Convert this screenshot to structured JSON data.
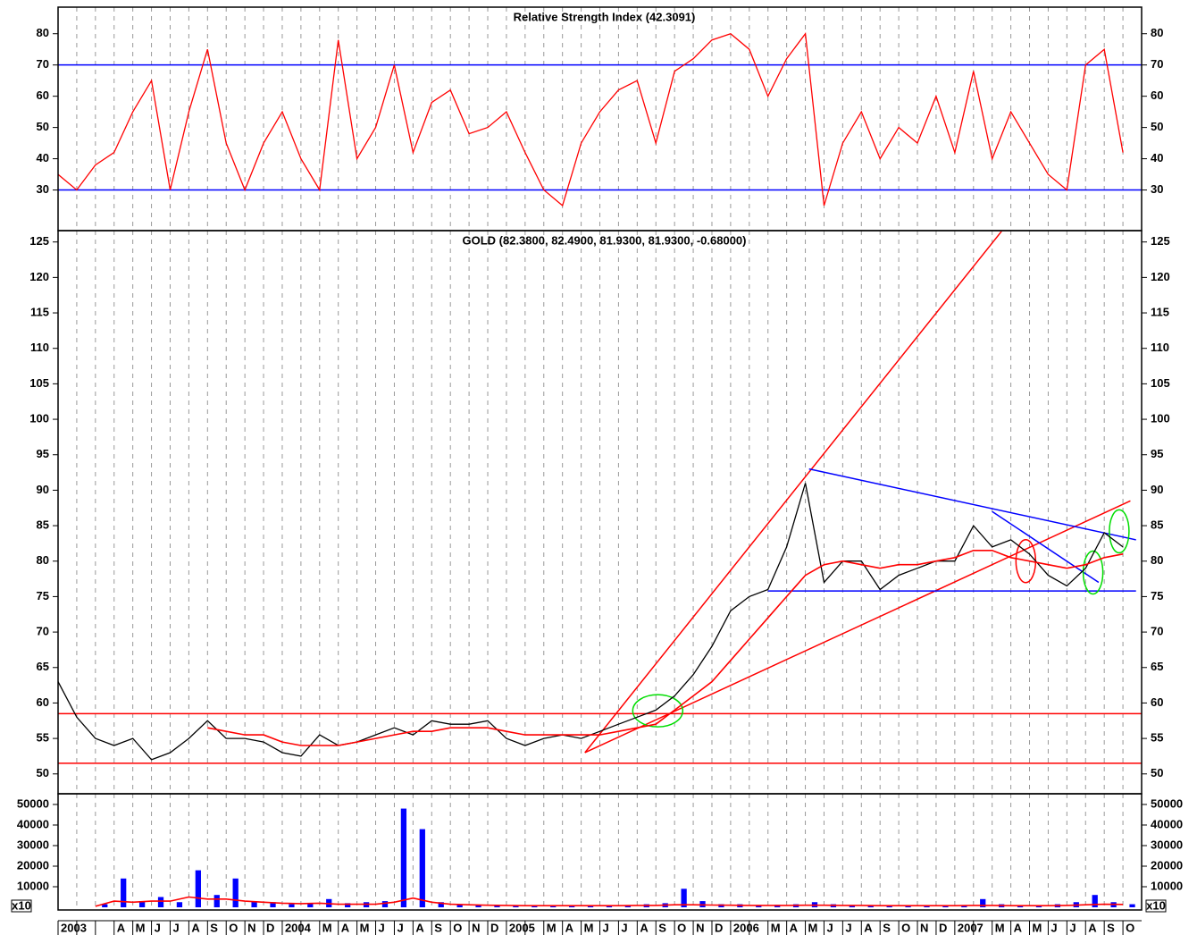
{
  "chart_data": [
    {
      "type": "line",
      "title": "Relative Strength Index (42.3091)",
      "ylim": [
        17,
        88.5
      ],
      "yticks": [
        30,
        40,
        50,
        60,
        70,
        80
      ],
      "series": [
        {
          "color": "#ff0000",
          "values": [
            35,
            30,
            38,
            42,
            55,
            65,
            30,
            55,
            75,
            45,
            30,
            45,
            55,
            40,
            30,
            78,
            40,
            50,
            70,
            42,
            58,
            62,
            48,
            50,
            55,
            42,
            30,
            25,
            45,
            55,
            62,
            65,
            45,
            68,
            72,
            78,
            80,
            75,
            60,
            72,
            80,
            25,
            45,
            55,
            40,
            50,
            45,
            60,
            42,
            68,
            40,
            55,
            45,
            35,
            30,
            70,
            75,
            42
          ]
        }
      ],
      "reference_lines": [
        {
          "value": 30,
          "color": "#0000ff"
        },
        {
          "value": 70,
          "color": "#0000ff"
        }
      ]
    },
    {
      "type": "line",
      "title": "GOLD (82.3800, 82.4900, 81.9300, 81.9300, -0.68000)",
      "ylim": [
        47.2,
        126.6
      ],
      "yticks": [
        50,
        55,
        60,
        65,
        70,
        75,
        80,
        85,
        90,
        95,
        100,
        105,
        110,
        115,
        120,
        125
      ],
      "series": [
        {
          "color": "#000000",
          "values": [
            63,
            58,
            55,
            54,
            55,
            52,
            53,
            55,
            57.5,
            55,
            55,
            54.5,
            53,
            52.5,
            55.5,
            54,
            54.5,
            55.5,
            56.5,
            55.5,
            57.5,
            57,
            57,
            57.5,
            55,
            54,
            55,
            55.5,
            55,
            56,
            57,
            58,
            59,
            61,
            64,
            68,
            73,
            75,
            76,
            82,
            91,
            77,
            80,
            80,
            76,
            78,
            79,
            80,
            80,
            85,
            82,
            83,
            81,
            78,
            76.5,
            79,
            84,
            82
          ]
        },
        {
          "color": "#ff0000",
          "values": [
            null,
            null,
            null,
            null,
            null,
            null,
            null,
            null,
            56.5,
            56,
            55.5,
            55.5,
            54.5,
            54,
            54,
            54,
            54.5,
            55,
            55.5,
            56,
            56,
            56.5,
            56.5,
            56.5,
            56,
            55.5,
            55.5,
            55.5,
            55.5,
            55.5,
            56,
            56.5,
            57,
            59,
            61,
            63,
            66,
            69,
            72,
            75,
            78,
            79.5,
            80,
            79.5,
            79,
            79.5,
            79.5,
            80,
            80.5,
            81.5,
            81.5,
            80.5,
            80,
            79.5,
            79,
            79.5,
            80.5,
            81
          ]
        }
      ],
      "reference_lines": [
        {
          "value": 58.5,
          "color": "#ff0000"
        },
        {
          "value": 51.5,
          "color": "#ff0000"
        }
      ],
      "trendlines": [
        {
          "x": [
            28.2,
            50.5
          ],
          "y": [
            53,
            126.5
          ],
          "color": "#ff0000"
        },
        {
          "x": [
            28.2,
            57.4
          ],
          "y": [
            53,
            88.5
          ],
          "color": "#ff0000"
        },
        {
          "x": [
            40.2,
            57.7
          ],
          "y": [
            93,
            83
          ],
          "color": "#0000ff"
        },
        {
          "x": [
            38,
            57.7
          ],
          "y": [
            75.8,
            75.8
          ],
          "color": "#0000ff"
        },
        {
          "x": [
            50,
            55.7
          ],
          "y": [
            87,
            77
          ],
          "color": "#0000ff"
        }
      ],
      "highlights": [
        {
          "x": 32.1,
          "y": 58.9,
          "color": "#00dd00"
        },
        {
          "x": 51.8,
          "y": 80,
          "color": "#ff0000"
        },
        {
          "x": 55.4,
          "y": 78.4,
          "color": "#00dd00"
        },
        {
          "x": 56.8,
          "y": 84.2,
          "color": "#00dd00"
        }
      ]
    },
    {
      "type": "bar",
      "unit": "x10",
      "ylim": [
        -1300,
        55200
      ],
      "yticks": [
        10000,
        20000,
        30000,
        40000,
        50000
      ],
      "categories": [
        "2003",
        null,
        null,
        "A",
        "M",
        "J",
        "J",
        "A",
        "S",
        "O",
        "N",
        "D",
        "2004",
        null,
        "M",
        "A",
        "M",
        "J",
        "J",
        "A",
        "S",
        "O",
        "N",
        "D",
        "2005",
        null,
        "M",
        "A",
        "M",
        "J",
        "J",
        "A",
        "S",
        "O",
        "N",
        "D",
        "2006",
        null,
        "M",
        "A",
        "M",
        "J",
        "J",
        "A",
        "S",
        "O",
        "N",
        "D",
        "2007",
        null,
        "M",
        "A",
        "M",
        "J",
        "J",
        "A",
        "S",
        "O"
      ],
      "series": [
        {
          "color": "#0000ff",
          "values": [
            null,
            null,
            1500,
            14000,
            3000,
            5000,
            2500,
            18000,
            6000,
            14000,
            3000,
            2500,
            1500,
            2000,
            4000,
            2000,
            2500,
            3000,
            48000,
            38000,
            2500,
            1500,
            1000,
            1000,
            1000,
            800,
            800,
            800,
            1000,
            1000,
            1000,
            1500,
            2000,
            9000,
            3000,
            1500,
            1500,
            1000,
            1200,
            1500,
            2500,
            1500,
            1000,
            1000,
            900,
            900,
            900,
            1000,
            1000,
            4000,
            1500,
            1000,
            1000,
            1500,
            2500,
            6000,
            2500,
            1500
          ]
        },
        {
          "color": "#ff0000",
          "type": "line",
          "values": [
            null,
            null,
            500,
            3000,
            2500,
            3000,
            3000,
            5000,
            4000,
            4000,
            3000,
            2500,
            2000,
            1800,
            2000,
            1500,
            1500,
            1500,
            2500,
            4500,
            2500,
            1500,
            1200,
            1000,
            900,
            800,
            800,
            800,
            800,
            800,
            800,
            900,
            900,
            1200,
            1200,
            1100,
            1000,
            900,
            900,
            900,
            1000,
            1000,
            900,
            900,
            800,
            800,
            800,
            800,
            800,
            900,
            900,
            800,
            800,
            800,
            900,
            1200,
            1500,
            1400
          ]
        }
      ]
    }
  ]
}
